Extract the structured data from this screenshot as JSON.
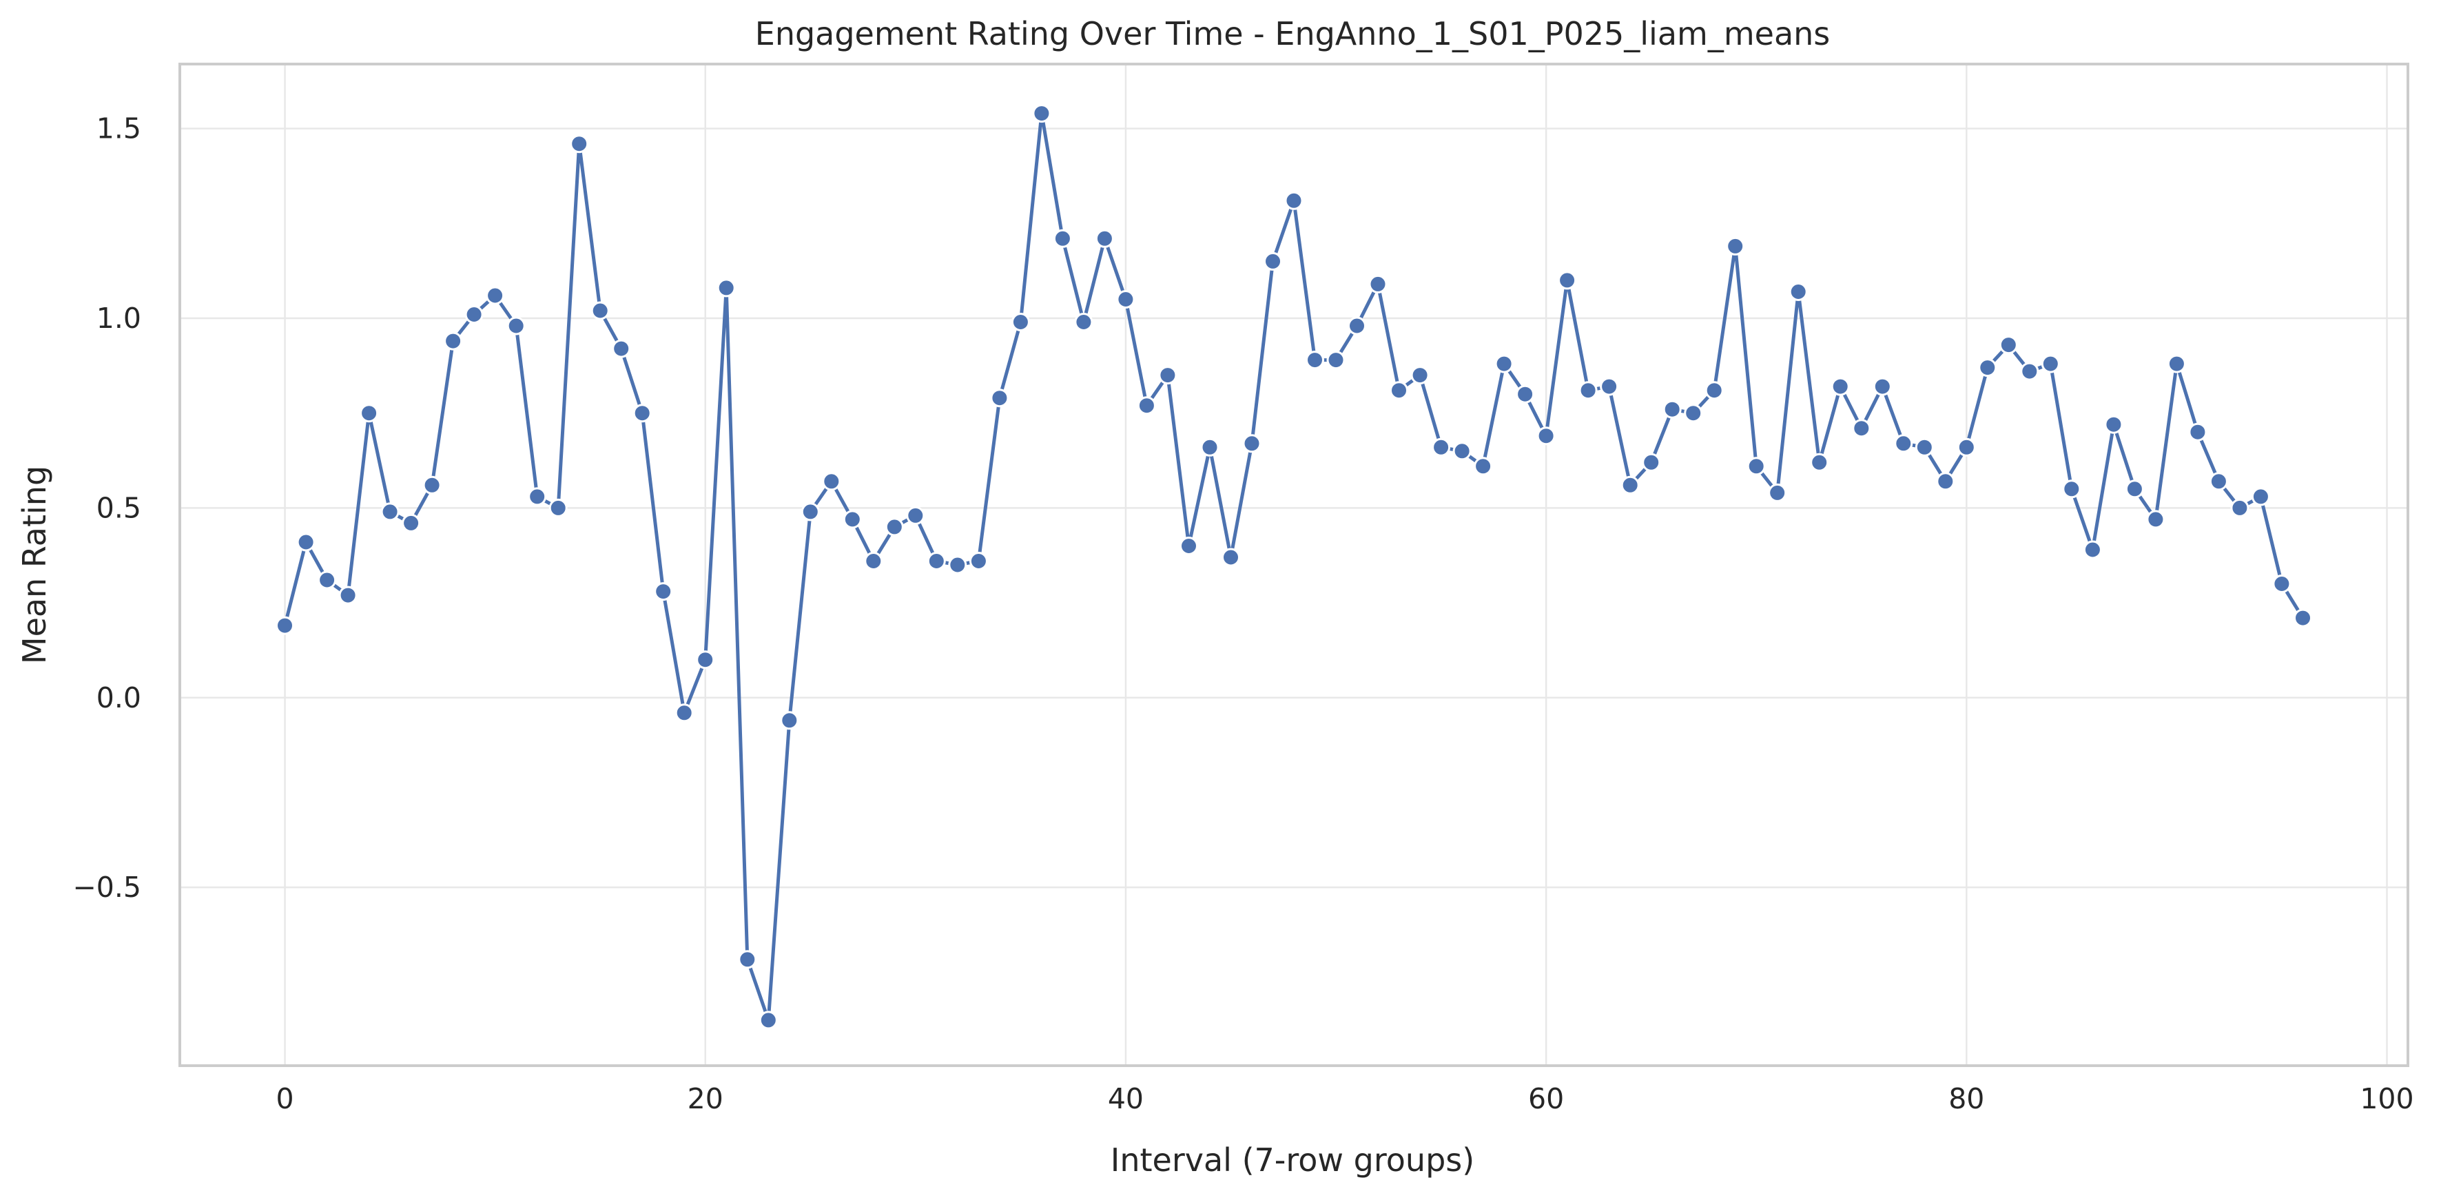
{
  "chart_data": {
    "type": "line",
    "title": "Engagement Rating Over Time -  EngAnno_1_S01_P025_liam_means",
    "xlabel": "Interval (7-row groups)",
    "ylabel": "Mean Rating",
    "xlim": [
      -5,
      101
    ],
    "ylim": [
      -0.97,
      1.67
    ],
    "x_ticks": [
      0,
      20,
      40,
      60,
      80,
      100
    ],
    "y_ticks": [
      -0.5,
      0.0,
      0.5,
      1.0,
      1.5
    ],
    "y_tick_labels": [
      "−0.5",
      "0.0",
      "0.5",
      "1.0",
      "1.5"
    ],
    "grid": true,
    "legend": "none",
    "series": [
      {
        "color": "#4C72B0",
        "marker": "circle",
        "x": [
          0,
          1,
          2,
          3,
          4,
          5,
          6,
          7,
          8,
          9,
          10,
          11,
          12,
          13,
          14,
          15,
          16,
          17,
          18,
          19,
          20,
          21,
          22,
          23,
          24,
          25,
          26,
          27,
          28,
          29,
          30,
          31,
          32,
          33,
          34,
          35,
          36,
          37,
          38,
          39,
          40,
          41,
          42,
          43,
          44,
          45,
          46,
          47,
          48,
          49,
          50,
          51,
          52,
          53,
          54,
          55,
          56,
          57,
          58,
          59,
          60,
          61,
          62,
          63,
          64,
          65,
          66,
          67,
          68,
          69,
          70,
          71,
          72,
          73,
          74,
          75,
          76,
          77,
          78,
          79,
          80,
          81,
          82,
          83,
          84,
          85,
          86,
          87,
          88,
          89,
          90,
          91,
          92,
          93,
          94,
          95,
          96
        ],
        "y": [
          0.19,
          0.41,
          0.31,
          0.27,
          0.75,
          0.49,
          0.46,
          0.56,
          0.94,
          1.01,
          1.06,
          0.98,
          0.53,
          0.5,
          1.46,
          1.02,
          0.92,
          0.75,
          0.28,
          -0.04,
          0.1,
          1.08,
          -0.69,
          -0.85,
          -0.06,
          0.49,
          0.57,
          0.47,
          0.36,
          0.45,
          0.48,
          0.36,
          0.35,
          0.36,
          0.79,
          0.99,
          1.54,
          1.21,
          0.99,
          1.21,
          1.05,
          0.77,
          0.85,
          0.4,
          0.66,
          0.37,
          0.67,
          1.15,
          1.31,
          0.89,
          0.89,
          0.98,
          1.09,
          0.81,
          0.85,
          0.66,
          0.65,
          0.61,
          0.88,
          0.8,
          0.69,
          1.1,
          0.81,
          0.82,
          0.56,
          0.62,
          0.76,
          0.75,
          0.81,
          1.19,
          0.61,
          0.54,
          1.07,
          0.62,
          0.82,
          0.71,
          0.82,
          0.67,
          0.66,
          0.57,
          0.66,
          0.87,
          0.93,
          0.86,
          0.88,
          0.55,
          0.39,
          0.72,
          0.55,
          0.47,
          0.88,
          0.7,
          0.57,
          0.5,
          0.53,
          0.3,
          0.21
        ]
      }
    ]
  }
}
